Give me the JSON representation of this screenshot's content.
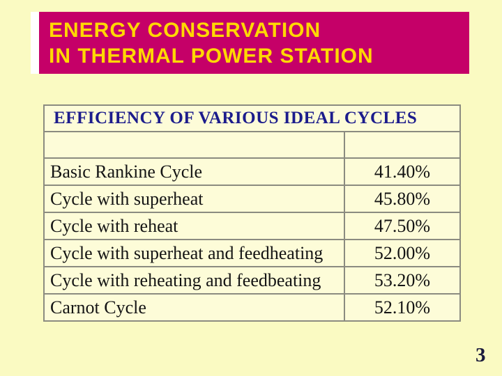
{
  "colors": {
    "slide_bg": "#FAFAC2",
    "header_bg": "#C50068",
    "header_text": "#FFD803",
    "header_backing": "#FFFFFF",
    "table_title_text": "#1C1C8C",
    "cell_bg": "#FDFCD8",
    "cell_text": "#141414",
    "table_border": "#8B8B80",
    "page_number_text": "#1A1A3C"
  },
  "header": {
    "line1": "ENERGY CONSERVATION",
    "line2": "IN THERMAL POWER STATION"
  },
  "table": {
    "title": "EFFICIENCY OF VARIOUS IDEAL CYCLES",
    "rows": [
      {
        "label": "Basic Rankine Cycle",
        "value": "41.40%"
      },
      {
        "label": "Cycle with superheat",
        "value": "45.80%"
      },
      {
        "label": "Cycle with reheat",
        "value": "47.50%"
      },
      {
        "label": "Cycle with superheat and feedheating",
        "value": "52.00%"
      },
      {
        "label": "Cycle with reheating and feedbeating",
        "value": "53.20%"
      },
      {
        "label": "Carnot Cycle",
        "value": "52.10%"
      }
    ]
  },
  "footer": {
    "page_number": "3"
  }
}
